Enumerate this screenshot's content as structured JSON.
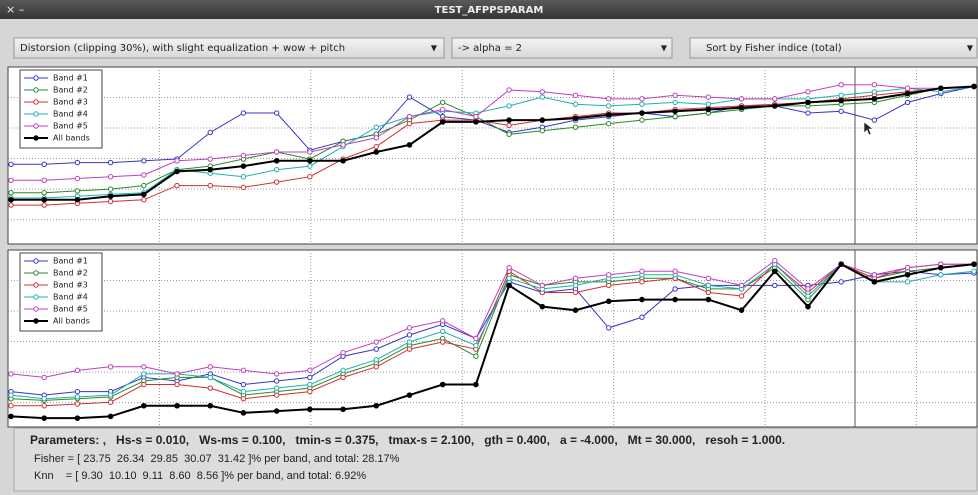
{
  "window": {
    "title": "TEST_AFPPSPARAM"
  },
  "dropdowns": [
    "Distorsion (clipping 30%), with slight equalization + wow + pitch",
    "-> alpha = 2",
    "Sort by Fisher indice (total)"
  ],
  "chart_data": [
    {
      "type": "line",
      "ylim": [
        0,
        1
      ],
      "grid": true,
      "legend": "upper left",
      "series": [
        {
          "name": "Band #1",
          "color": "#3535c8",
          "values": [
            0.45,
            0.45,
            0.46,
            0.46,
            0.47,
            0.48,
            0.63,
            0.74,
            0.74,
            0.53,
            0.58,
            0.62,
            0.83,
            0.72,
            0.7,
            0.63,
            0.66,
            0.7,
            0.72,
            0.74,
            0.72,
            0.74,
            0.78,
            0.78,
            0.74,
            0.75,
            0.7,
            0.8,
            0.85,
            0.89
          ]
        },
        {
          "name": "Band #2",
          "color": "#2a8a2a",
          "values": [
            0.29,
            0.29,
            0.3,
            0.31,
            0.33,
            0.42,
            0.44,
            0.48,
            0.52,
            0.48,
            0.58,
            0.62,
            0.7,
            0.8,
            0.72,
            0.62,
            0.64,
            0.66,
            0.68,
            0.7,
            0.72,
            0.74,
            0.76,
            0.78,
            0.78,
            0.79,
            0.8,
            0.84,
            0.88,
            0.89
          ]
        },
        {
          "name": "Band #3",
          "color": "#d03030",
          "values": [
            0.22,
            0.22,
            0.23,
            0.24,
            0.25,
            0.33,
            0.33,
            0.32,
            0.35,
            0.38,
            0.48,
            0.55,
            0.68,
            0.7,
            0.7,
            0.67,
            0.7,
            0.72,
            0.74,
            0.74,
            0.76,
            0.77,
            0.78,
            0.79,
            0.8,
            0.82,
            0.84,
            0.86,
            0.88,
            0.89
          ]
        },
        {
          "name": "Band #4",
          "color": "#20b0b0",
          "values": [
            0.26,
            0.26,
            0.27,
            0.28,
            0.29,
            0.42,
            0.4,
            0.38,
            0.42,
            0.44,
            0.55,
            0.66,
            0.72,
            0.75,
            0.74,
            0.78,
            0.83,
            0.79,
            0.78,
            0.79,
            0.8,
            0.79,
            0.82,
            0.82,
            0.82,
            0.84,
            0.86,
            0.88,
            0.86,
            0.89
          ]
        },
        {
          "name": "Band #5",
          "color": "#c040c0",
          "values": [
            0.36,
            0.36,
            0.37,
            0.38,
            0.39,
            0.47,
            0.48,
            0.5,
            0.52,
            0.52,
            0.56,
            0.6,
            0.72,
            0.76,
            0.72,
            0.87,
            0.86,
            0.84,
            0.82,
            0.82,
            0.84,
            0.83,
            0.82,
            0.82,
            0.86,
            0.9,
            0.9,
            0.88,
            0.88,
            0.89
          ]
        },
        {
          "name": "All bands",
          "color": "#000000",
          "values": [
            0.25,
            0.25,
            0.25,
            0.27,
            0.28,
            0.41,
            0.42,
            0.44,
            0.47,
            0.47,
            0.47,
            0.52,
            0.56,
            0.69,
            0.69,
            0.7,
            0.7,
            0.71,
            0.73,
            0.74,
            0.75,
            0.76,
            0.77,
            0.78,
            0.8,
            0.81,
            0.82,
            0.85,
            0.88,
            0.89
          ]
        }
      ]
    },
    {
      "type": "line",
      "ylim": [
        0,
        1
      ],
      "grid": true,
      "legend": "upper left",
      "series": [
        {
          "name": "Band #1",
          "color": "#3535c8",
          "values": [
            0.2,
            0.18,
            0.2,
            0.2,
            0.28,
            0.26,
            0.3,
            0.24,
            0.26,
            0.28,
            0.4,
            0.44,
            0.52,
            0.58,
            0.5,
            0.82,
            0.76,
            0.78,
            0.56,
            0.62,
            0.78,
            0.8,
            0.8,
            0.8,
            0.8,
            0.82,
            0.86,
            0.88,
            0.86,
            0.87
          ]
        },
        {
          "name": "Band #2",
          "color": "#2a8a2a",
          "values": [
            0.16,
            0.15,
            0.16,
            0.17,
            0.26,
            0.28,
            0.28,
            0.18,
            0.2,
            0.22,
            0.3,
            0.36,
            0.46,
            0.5,
            0.4,
            0.86,
            0.8,
            0.82,
            0.82,
            0.84,
            0.84,
            0.78,
            0.78,
            0.9,
            0.72,
            0.92,
            0.84,
            0.88,
            0.9,
            0.92
          ]
        },
        {
          "name": "Band #3",
          "color": "#d03030",
          "values": [
            0.12,
            0.12,
            0.13,
            0.14,
            0.24,
            0.24,
            0.22,
            0.16,
            0.18,
            0.2,
            0.28,
            0.34,
            0.44,
            0.48,
            0.44,
            0.88,
            0.76,
            0.76,
            0.8,
            0.82,
            0.84,
            0.76,
            0.74,
            0.92,
            0.76,
            0.92,
            0.84,
            0.9,
            0.92,
            0.92
          ]
        },
        {
          "name": "Band #4",
          "color": "#20b0b0",
          "values": [
            0.18,
            0.16,
            0.17,
            0.18,
            0.3,
            0.3,
            0.28,
            0.2,
            0.22,
            0.24,
            0.32,
            0.38,
            0.48,
            0.54,
            0.46,
            0.84,
            0.78,
            0.8,
            0.84,
            0.86,
            0.86,
            0.8,
            0.78,
            0.92,
            0.74,
            0.92,
            0.82,
            0.82,
            0.86,
            0.88
          ]
        },
        {
          "name": "Band #5",
          "color": "#c040c0",
          "values": [
            0.3,
            0.28,
            0.32,
            0.34,
            0.34,
            0.3,
            0.34,
            0.32,
            0.3,
            0.32,
            0.42,
            0.48,
            0.56,
            0.6,
            0.5,
            0.9,
            0.8,
            0.84,
            0.86,
            0.88,
            0.88,
            0.84,
            0.8,
            0.94,
            0.78,
            0.92,
            0.86,
            0.9,
            0.92,
            0.92
          ]
        },
        {
          "name": "All bands",
          "color": "#000000",
          "values": [
            0.06,
            0.05,
            0.05,
            0.06,
            0.12,
            0.12,
            0.12,
            0.08,
            0.09,
            0.1,
            0.1,
            0.12,
            0.18,
            0.24,
            0.24,
            0.8,
            0.68,
            0.66,
            0.71,
            0.72,
            0.72,
            0.72,
            0.66,
            0.88,
            0.68,
            0.92,
            0.82,
            0.86,
            0.9,
            0.92
          ]
        }
      ]
    }
  ],
  "results": {
    "parameters": "Parameters: ,   Hs-s = 0.010,   Ws-ms = 0.100,   tmin-s = 0.375,   tmax-s = 2.100,   gth = 0.400,   a = -4.000,   Mt = 30.000,   resoh = 1.000.",
    "fisher": "Fisher = [ 23.75  26.34  29.85  30.07  31.42 ]% per band, and total: 28.17%",
    "knn": "Knn    = [ 9.30  10.10  9.11  8.60  8.56 ]% per band, and total: 6.92%"
  }
}
